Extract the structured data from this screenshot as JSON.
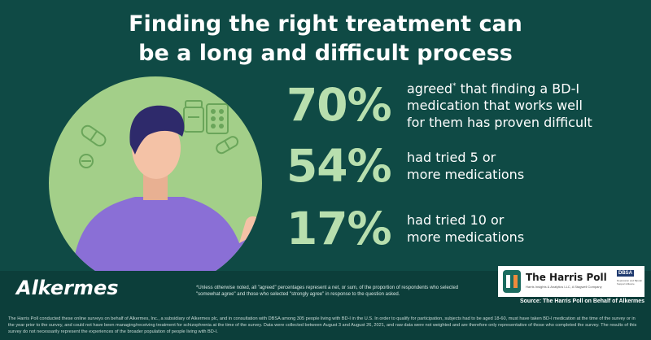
{
  "title": {
    "line1": "Finding the right treatment can",
    "line2": "be a long and difficult process"
  },
  "stats": [
    {
      "percent": "70%",
      "pre": "agreed",
      "sup": "*",
      "line1_rest": " that finding a BD-I",
      "line2": "medication that works well",
      "line3": "for them has proven difficult"
    },
    {
      "percent": "54%",
      "line1": "had tried 5 or",
      "line2": "more medications"
    },
    {
      "percent": "17%",
      "line1": "had tried 10 or",
      "line2": "more medications"
    }
  ],
  "brand": "Alkermes",
  "footnote": "*Unless otherwise noted, all \"agreed\" percentages represent a net, or sum, of the proportion of respondents who selected \"somewhat agree\" and those who selected \"strongly agree\" in response to the question asked.",
  "harris": {
    "name": "The Harris Poll",
    "tagline": "Harris Insights & Analytics LLC, A Stagwell Company",
    "dbsa": "DBSA",
    "dbsa_sub": "Depression and Bipolar Support Alliance",
    "source": "Source: The Harris Poll on Behalf of Alkermes"
  },
  "disclaimer": "The Harris Poll conducted these online surveys on behalf of Alkermes, Inc., a subsidiary of Alkermes plc, and in consultation with DBSA among 305 people living with BD-I in the U.S. In order to qualify for participation, subjects had to be aged 18-60, must have taken BD-I medication at the time of the survey or in the year prior to the survey, and could not have been managing/receiving treatment for schizophrenia at the time of the survey. Data were collected between August 3 and August 26, 2021, and raw data were not weighted and are therefore only representative of those who completed the survey. The results of this survey do not necessarily represent the experiences of the broader population of people living with BD-I.",
  "colors": {
    "background": "#0f4a45",
    "accent_green": "#b8dfae",
    "circle": "#a3cf89",
    "shirt": "#8a6fd6",
    "hair": "#2e2a6b",
    "skin": "#f4c2a6"
  }
}
